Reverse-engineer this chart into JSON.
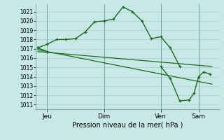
{
  "background_color": "#c8e8e8",
  "grid_color": "#a8cccc",
  "line_color": "#1a6a1a",
  "title": "Pression niveau de la mer( hPa )",
  "xlabel_ticks": [
    "Jeu",
    "Dim",
    "Ven",
    "Sam"
  ],
  "xlabel_tick_positions": [
    0.5,
    3.5,
    6.5,
    8.5
  ],
  "ylim": [
    1010.5,
    1021.8
  ],
  "yticks": [
    1011,
    1012,
    1013,
    1014,
    1015,
    1016,
    1017,
    1018,
    1019,
    1020,
    1021
  ],
  "xlim": [
    -0.1,
    9.6
  ],
  "series1_main": {
    "x": [
      0.0,
      0.5,
      1.0,
      1.5,
      2.0,
      2.5,
      3.0,
      3.5,
      4.0,
      4.5,
      5.0,
      5.5,
      6.0,
      6.5,
      7.0,
      7.5
    ],
    "y": [
      1017.1,
      1017.5,
      1018.0,
      1018.0,
      1018.1,
      1018.8,
      1019.9,
      1020.0,
      1020.2,
      1021.5,
      1021.0,
      1020.0,
      1018.1,
      1018.3,
      1017.1,
      1015.1
    ]
  },
  "series2_flat": {
    "x": [
      0.0,
      9.2
    ],
    "y": [
      1016.7,
      1015.1
    ]
  },
  "series3_diagonal": {
    "x": [
      0.0,
      9.2
    ],
    "y": [
      1016.9,
      1013.2
    ]
  },
  "series4_right": {
    "x": [
      6.5,
      7.0,
      7.5,
      8.0,
      8.25,
      8.5,
      8.75,
      9.1
    ],
    "y": [
      1015.1,
      1013.8,
      1011.4,
      1011.5,
      1012.2,
      1014.0,
      1014.5,
      1014.3
    ]
  },
  "series1_left": {
    "x": [
      0.0,
      0.5
    ],
    "y": [
      1017.1,
      1016.7
    ]
  }
}
